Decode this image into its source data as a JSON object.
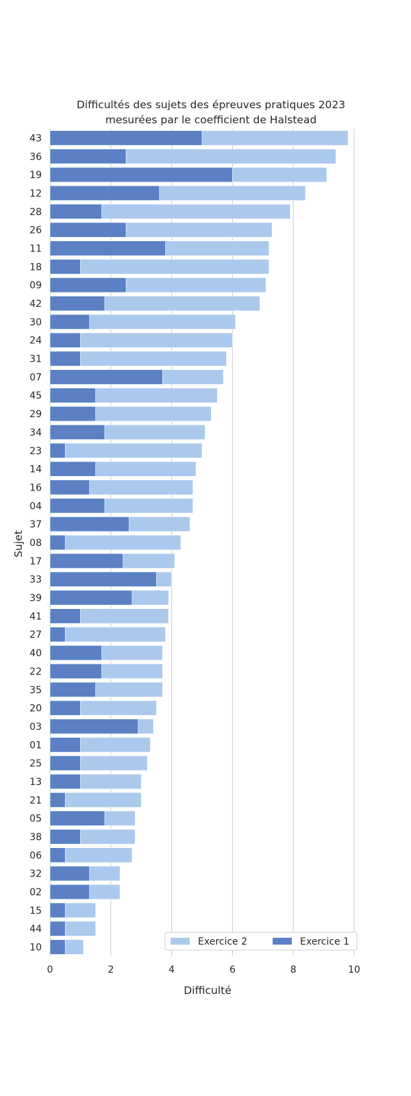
{
  "chart_data": {
    "type": "bar",
    "orientation": "horizontal",
    "stacking": "overlay",
    "title_lines": [
      "Difficultés des sujets des épreuves pratiques 2023",
      "mesurées par le coefficient de Halstead"
    ],
    "xlabel": "Difficulté",
    "ylabel": "Sujet",
    "xlim": [
      0,
      10
    ],
    "xticks": [
      0,
      2,
      4,
      6,
      8,
      10
    ],
    "grid": "vertical",
    "legend_position": "bottom-right",
    "categories": [
      "43",
      "36",
      "19",
      "12",
      "28",
      "26",
      "11",
      "18",
      "09",
      "42",
      "30",
      "24",
      "31",
      "07",
      "45",
      "29",
      "34",
      "23",
      "14",
      "16",
      "04",
      "37",
      "08",
      "17",
      "33",
      "39",
      "41",
      "27",
      "40",
      "22",
      "35",
      "20",
      "03",
      "01",
      "25",
      "13",
      "21",
      "05",
      "38",
      "06",
      "32",
      "02",
      "15",
      "44",
      "10"
    ],
    "series": [
      {
        "name": "Exercice 2",
        "color": "#abc9ec",
        "values": [
          9.8,
          9.4,
          9.1,
          8.4,
          7.9,
          7.3,
          7.2,
          7.2,
          7.1,
          6.9,
          6.1,
          6.0,
          5.8,
          5.7,
          5.5,
          5.3,
          5.1,
          5.0,
          4.8,
          4.7,
          4.7,
          4.6,
          4.3,
          4.1,
          4.0,
          3.9,
          3.9,
          3.8,
          3.7,
          3.7,
          3.7,
          3.5,
          3.4,
          3.3,
          3.2,
          3.0,
          3.0,
          2.8,
          2.8,
          2.7,
          2.3,
          2.3,
          1.5,
          1.5,
          1.1
        ]
      },
      {
        "name": "Exercice 1",
        "color": "#5b80c4",
        "values": [
          5.0,
          2.5,
          6.0,
          3.6,
          1.7,
          2.5,
          3.8,
          1.0,
          2.5,
          1.8,
          1.3,
          1.0,
          1.0,
          3.7,
          1.5,
          1.5,
          1.8,
          0.5,
          1.5,
          1.3,
          1.8,
          2.6,
          0.5,
          2.4,
          3.5,
          2.7,
          1.0,
          0.5,
          1.7,
          1.7,
          1.5,
          1.0,
          2.9,
          1.0,
          1.0,
          1.0,
          0.5,
          1.8,
          1.0,
          0.5,
          1.3,
          1.3,
          0.5,
          0.5,
          0.5
        ]
      }
    ]
  }
}
